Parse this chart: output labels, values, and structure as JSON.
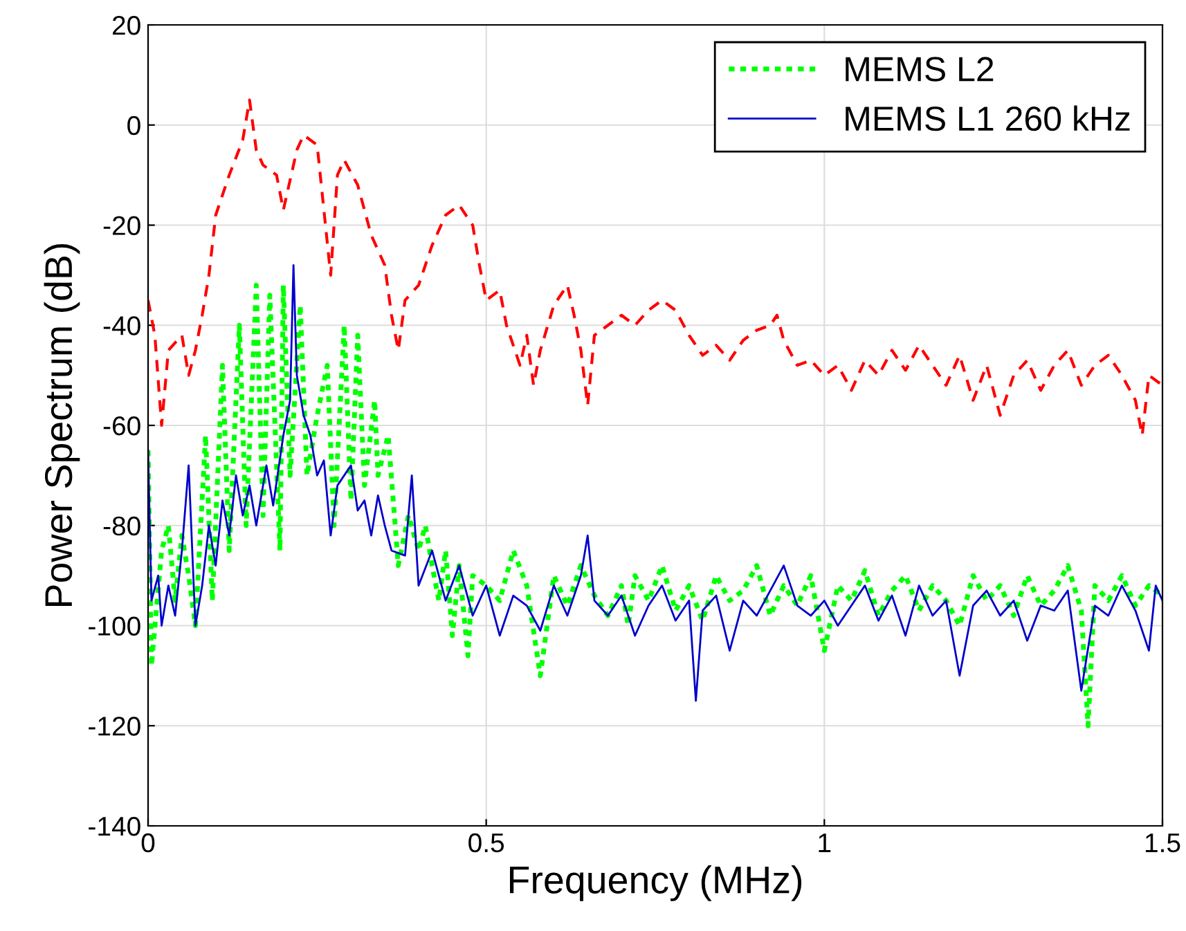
{
  "chart_data": {
    "type": "line",
    "xlabel": "Frequency (MHz)",
    "ylabel": "Power Spectrum (dB)",
    "xlim": [
      0,
      1.5
    ],
    "xticks": [
      0,
      0.5,
      1,
      1.5
    ],
    "ylim": [
      -140,
      20
    ],
    "yticks": [
      -140,
      -120,
      -100,
      -80,
      -60,
      -40,
      -20,
      0,
      20
    ],
    "grid": true,
    "legend": "top right",
    "series": [
      {
        "color": "#ff0000",
        "line_style": "dashed",
        "x": [
          0,
          0.01,
          0.02,
          0.03,
          0.05,
          0.06,
          0.07,
          0.08,
          0.09,
          0.1,
          0.12,
          0.14,
          0.15,
          0.16,
          0.17,
          0.19,
          0.2,
          0.22,
          0.23,
          0.25,
          0.27,
          0.28,
          0.29,
          0.31,
          0.33,
          0.35,
          0.36,
          0.37,
          0.38,
          0.4,
          0.42,
          0.44,
          0.46,
          0.48,
          0.49,
          0.5,
          0.52,
          0.53,
          0.55,
          0.56,
          0.57,
          0.58,
          0.6,
          0.62,
          0.63,
          0.64,
          0.65,
          0.66,
          0.68,
          0.7,
          0.72,
          0.74,
          0.76,
          0.78,
          0.8,
          0.82,
          0.84,
          0.86,
          0.88,
          0.9,
          0.92,
          0.93,
          0.94,
          0.96,
          0.98,
          1.0,
          1.02,
          1.04,
          1.06,
          1.08,
          1.1,
          1.12,
          1.14,
          1.16,
          1.18,
          1.2,
          1.22,
          1.24,
          1.26,
          1.28,
          1.3,
          1.32,
          1.34,
          1.36,
          1.38,
          1.4,
          1.42,
          1.44,
          1.46,
          1.47,
          1.48,
          1.5
        ],
        "values": [
          -35,
          -42,
          -60,
          -45,
          -42,
          -50,
          -45,
          -38,
          -30,
          -18,
          -10,
          -3,
          5,
          -5,
          -8,
          -10,
          -17,
          -5,
          -2,
          -4,
          -30,
          -10,
          -7,
          -12,
          -22,
          -28,
          -38,
          -45,
          -35,
          -32,
          -24,
          -18,
          -16,
          -20,
          -28,
          -35,
          -33,
          -40,
          -48,
          -42,
          -52,
          -45,
          -36,
          -32,
          -38,
          -45,
          -56,
          -42,
          -40,
          -38,
          -40,
          -37,
          -35,
          -37,
          -42,
          -46,
          -44,
          -47,
          -43,
          -41,
          -40,
          -38,
          -43,
          -48,
          -47,
          -50,
          -48,
          -53,
          -47,
          -50,
          -45,
          -49,
          -44,
          -48,
          -52,
          -46,
          -55,
          -48,
          -58,
          -50,
          -47,
          -53,
          -48,
          -45,
          -52,
          -48,
          -46,
          -50,
          -55,
          -62,
          -50,
          -52
        ]
      },
      {
        "name": "MEMS L2",
        "color": "#00ff00",
        "line_style": "dotted",
        "x": [
          0,
          0.005,
          0.02,
          0.03,
          0.04,
          0.05,
          0.06,
          0.07,
          0.085,
          0.095,
          0.11,
          0.12,
          0.135,
          0.145,
          0.16,
          0.17,
          0.18,
          0.195,
          0.2,
          0.21,
          0.225,
          0.235,
          0.25,
          0.265,
          0.275,
          0.29,
          0.3,
          0.31,
          0.32,
          0.335,
          0.34,
          0.355,
          0.37,
          0.385,
          0.4,
          0.41,
          0.42,
          0.43,
          0.44,
          0.45,
          0.46,
          0.473,
          0.48,
          0.5,
          0.52,
          0.54,
          0.56,
          0.58,
          0.6,
          0.62,
          0.64,
          0.66,
          0.68,
          0.7,
          0.71,
          0.72,
          0.74,
          0.76,
          0.78,
          0.8,
          0.82,
          0.84,
          0.86,
          0.88,
          0.9,
          0.92,
          0.94,
          0.96,
          0.98,
          1.0,
          1.02,
          1.04,
          1.06,
          1.08,
          1.1,
          1.12,
          1.14,
          1.16,
          1.18,
          1.2,
          1.22,
          1.24,
          1.26,
          1.28,
          1.3,
          1.32,
          1.34,
          1.36,
          1.38,
          1.39,
          1.4,
          1.42,
          1.44,
          1.46,
          1.48,
          1.5
        ],
        "values": [
          -65,
          -108,
          -85,
          -80,
          -95,
          -82,
          -90,
          -100,
          -62,
          -95,
          -48,
          -85,
          -40,
          -80,
          -32,
          -78,
          -34,
          -85,
          -32,
          -70,
          -36,
          -70,
          -58,
          -48,
          -80,
          -40,
          -75,
          -42,
          -72,
          -55,
          -70,
          -62,
          -88,
          -78,
          -85,
          -80,
          -88,
          -95,
          -85,
          -102,
          -88,
          -106,
          -90,
          -92,
          -95,
          -85,
          -92,
          -110,
          -90,
          -96,
          -88,
          -94,
          -98,
          -92,
          -100,
          -90,
          -95,
          -88,
          -97,
          -92,
          -99,
          -90,
          -95,
          -93,
          -88,
          -98,
          -92,
          -96,
          -90,
          -105,
          -92,
          -95,
          -89,
          -98,
          -93,
          -90,
          -97,
          -92,
          -95,
          -100,
          -90,
          -95,
          -92,
          -98,
          -90,
          -96,
          -93,
          -88,
          -97,
          -120,
          -92,
          -95,
          -90,
          -96,
          -92,
          -94
        ]
      },
      {
        "name": "MEMS L1 260 kHz",
        "color": "#0000cc",
        "line_style": "solid",
        "x": [
          0,
          0.005,
          0.015,
          0.02,
          0.03,
          0.04,
          0.05,
          0.06,
          0.07,
          0.08,
          0.09,
          0.1,
          0.11,
          0.12,
          0.13,
          0.14,
          0.15,
          0.16,
          0.175,
          0.185,
          0.2,
          0.21,
          0.215,
          0.22,
          0.23,
          0.24,
          0.25,
          0.26,
          0.27,
          0.28,
          0.29,
          0.3,
          0.31,
          0.32,
          0.33,
          0.34,
          0.35,
          0.36,
          0.38,
          0.39,
          0.4,
          0.42,
          0.44,
          0.46,
          0.48,
          0.5,
          0.52,
          0.54,
          0.56,
          0.58,
          0.6,
          0.62,
          0.64,
          0.65,
          0.66,
          0.68,
          0.7,
          0.72,
          0.74,
          0.76,
          0.78,
          0.8,
          0.81,
          0.82,
          0.84,
          0.86,
          0.88,
          0.9,
          0.92,
          0.94,
          0.96,
          0.98,
          1.0,
          1.02,
          1.04,
          1.06,
          1.08,
          1.1,
          1.12,
          1.14,
          1.16,
          1.18,
          1.2,
          1.22,
          1.24,
          1.26,
          1.28,
          1.3,
          1.32,
          1.34,
          1.36,
          1.38,
          1.4,
          1.42,
          1.44,
          1.46,
          1.48,
          1.49,
          1.5
        ],
        "values": [
          -65,
          -95,
          -90,
          -100,
          -92,
          -98,
          -85,
          -68,
          -100,
          -92,
          -80,
          -88,
          -75,
          -82,
          -70,
          -78,
          -72,
          -80,
          -68,
          -76,
          -62,
          -55,
          -28,
          -50,
          -58,
          -62,
          -70,
          -67,
          -82,
          -72,
          -70,
          -68,
          -77,
          -75,
          -82,
          -74,
          -80,
          -85,
          -86,
          -70,
          -92,
          -85,
          -95,
          -88,
          -98,
          -92,
          -102,
          -94,
          -96,
          -101,
          -92,
          -98,
          -90,
          -82,
          -95,
          -98,
          -94,
          -102,
          -96,
          -92,
          -99,
          -95,
          -115,
          -97,
          -94,
          -105,
          -95,
          -98,
          -93,
          -88,
          -96,
          -98,
          -95,
          -100,
          -96,
          -92,
          -99,
          -94,
          -102,
          -92,
          -98,
          -95,
          -110,
          -96,
          -93,
          -98,
          -95,
          -103,
          -96,
          -97,
          -93,
          -113,
          -96,
          -98,
          -92,
          -97,
          -105,
          -92,
          -95
        ]
      }
    ]
  }
}
